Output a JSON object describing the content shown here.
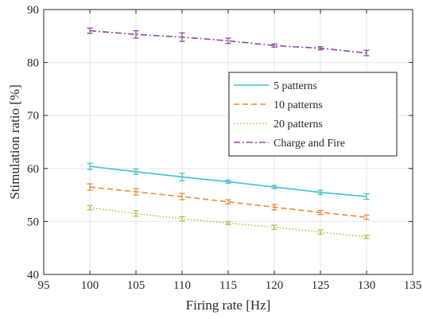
{
  "chart_data": {
    "type": "line",
    "xlabel": "Firing rate [Hz]",
    "ylabel": "Stimulation ratio [%]",
    "xlim": [
      95,
      135
    ],
    "ylim": [
      40,
      90
    ],
    "xticks": [
      "95",
      "100",
      "105",
      "110",
      "115",
      "120",
      "125",
      "130",
      "135"
    ],
    "yticks": [
      "40",
      "50",
      "60",
      "70",
      "80",
      "90"
    ],
    "grid": true,
    "legend_position": "right",
    "x": [
      100,
      105,
      110,
      115,
      120,
      125,
      130
    ],
    "series": [
      {
        "name": "5 patterns",
        "color": "#3fbfcf",
        "dash": "solid",
        "values": [
          60.4,
          59.4,
          58.4,
          57.5,
          56.5,
          55.5,
          54.7
        ],
        "errors": [
          0.6,
          0.5,
          0.7,
          0.3,
          0.3,
          0.4,
          0.5
        ]
      },
      {
        "name": "10 patterns",
        "color": "#ee8a35",
        "dash": "dashed",
        "values": [
          56.5,
          55.6,
          54.7,
          53.7,
          52.7,
          51.7,
          50.8
        ],
        "errors": [
          0.6,
          0.6,
          0.6,
          0.4,
          0.5,
          0.4,
          0.4
        ]
      },
      {
        "name": "20 patterns",
        "color": "#a5c84a",
        "dash": "dotted",
        "values": [
          52.6,
          51.5,
          50.5,
          49.7,
          48.9,
          48.0,
          47.1
        ],
        "errors": [
          0.4,
          0.5,
          0.4,
          0.3,
          0.4,
          0.4,
          0.3
        ]
      },
      {
        "name": "Charge and Fire",
        "color": "#8e4a9e",
        "dash": "dashdot",
        "values": [
          86.0,
          85.3,
          84.8,
          84.1,
          83.2,
          82.7,
          81.8
        ],
        "errors": [
          0.5,
          0.7,
          0.8,
          0.5,
          0.3,
          0.3,
          0.5
        ]
      }
    ]
  }
}
